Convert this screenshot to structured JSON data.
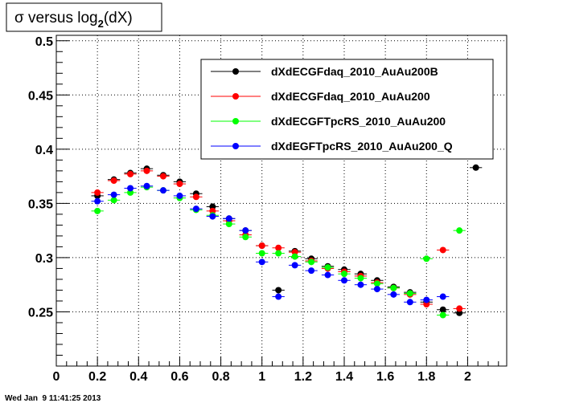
{
  "chart_data": {
    "type": "scatter",
    "title": "σ versus log",
    "title_subscript": "2",
    "title_suffix": "(dX)",
    "xlabel": "",
    "ylabel": "",
    "xlim": [
      0,
      2.19
    ],
    "ylim": [
      0.2,
      0.505
    ],
    "x_ticks": [
      0,
      0.2,
      0.4,
      0.6,
      0.8,
      1,
      1.2,
      1.4,
      1.6,
      1.8,
      2
    ],
    "x_tick_labels": [
      "0",
      "0.2",
      "0.4",
      "0.6",
      "0.8",
      "1",
      "1.2",
      "1.4",
      "1.6",
      "1.8",
      "2"
    ],
    "y_ticks": [
      0.25,
      0.3,
      0.35,
      0.4,
      0.45,
      0.5
    ],
    "y_tick_labels": [
      "0.25",
      "0.3",
      "0.35",
      "0.4",
      "0.45",
      "0.5"
    ],
    "grid": true,
    "legend_position": "top-right",
    "x_error": 0.03,
    "series": [
      {
        "name": "dXdECGFdaq_2010_AuAu200B",
        "color": "#000000",
        "x": [
          0.2,
          0.28,
          0.36,
          0.44,
          0.52,
          0.6,
          0.68,
          0.76,
          0.84,
          0.92,
          1.0,
          1.08,
          1.16,
          1.24,
          1.32,
          1.4,
          1.48,
          1.56,
          1.64,
          1.72,
          1.8,
          1.88,
          1.96,
          2.04
        ],
        "y": [
          0.357,
          0.372,
          0.378,
          0.382,
          0.376,
          0.37,
          0.359,
          0.347,
          0.336,
          0.325,
          0.311,
          0.27,
          0.306,
          0.299,
          0.292,
          0.289,
          0.285,
          0.279,
          0.273,
          0.268,
          0.259,
          0.252,
          0.249,
          0.383
        ]
      },
      {
        "name": "dXdECGFdaq_2010_AuAu200",
        "color": "#ff0000",
        "x": [
          0.2,
          0.28,
          0.36,
          0.44,
          0.52,
          0.6,
          0.68,
          0.76,
          0.84,
          0.92,
          1.0,
          1.08,
          1.16,
          1.24,
          1.32,
          1.4,
          1.48,
          1.56,
          1.64,
          1.72,
          1.8,
          1.88,
          1.96
        ],
        "y": [
          0.36,
          0.371,
          0.377,
          0.38,
          0.375,
          0.368,
          0.356,
          0.343,
          0.334,
          0.321,
          0.311,
          0.309,
          0.305,
          0.297,
          0.29,
          0.287,
          0.283,
          0.277,
          0.272,
          0.266,
          0.257,
          0.307,
          0.253
        ]
      },
      {
        "name": "dXdECGFTpcRS_2010_AuAu200",
        "color": "#00ff00",
        "x": [
          0.2,
          0.28,
          0.36,
          0.44,
          0.52,
          0.6,
          0.68,
          0.76,
          0.84,
          0.92,
          1.0,
          1.08,
          1.16,
          1.24,
          1.32,
          1.4,
          1.48,
          1.56,
          1.64,
          1.72,
          1.8,
          1.88,
          1.96
        ],
        "y": [
          0.343,
          0.353,
          0.36,
          0.365,
          0.362,
          0.355,
          0.344,
          0.339,
          0.331,
          0.319,
          0.304,
          0.304,
          0.301,
          0.296,
          0.291,
          0.285,
          0.281,
          0.276,
          0.272,
          0.267,
          0.299,
          0.247,
          0.325
        ]
      },
      {
        "name": "dXdEGFTpcRS_2010_AuAu200_Q",
        "color": "#0000ff",
        "x": [
          0.2,
          0.28,
          0.36,
          0.44,
          0.52,
          0.6,
          0.68,
          0.76,
          0.84,
          0.92,
          1.0,
          1.08,
          1.16,
          1.24,
          1.32,
          1.4,
          1.48,
          1.56,
          1.64,
          1.72,
          1.8,
          1.88
        ],
        "y": [
          0.352,
          0.358,
          0.364,
          0.366,
          0.362,
          0.357,
          0.345,
          0.338,
          0.336,
          0.325,
          0.296,
          0.264,
          0.293,
          0.288,
          0.284,
          0.279,
          0.275,
          0.271,
          0.266,
          0.259,
          0.261,
          0.264
        ]
      }
    ]
  },
  "footer": {
    "timestamp": "Wed Jan  9 11:41:25 2013"
  }
}
